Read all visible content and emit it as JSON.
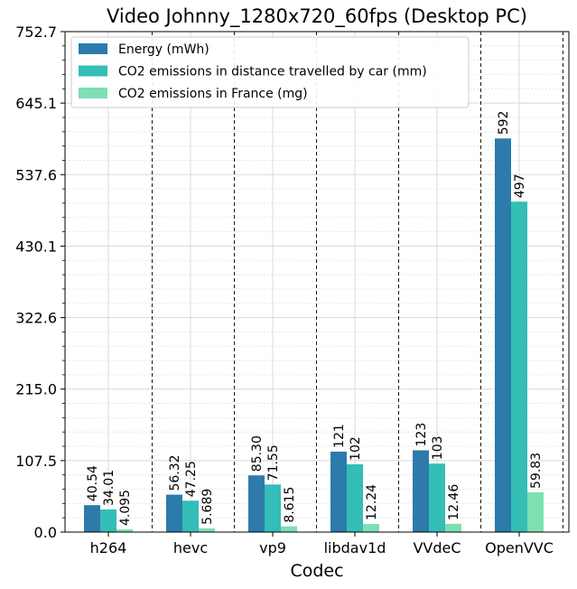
{
  "chart_data": {
    "type": "bar",
    "title": "Video Johnny_1280x720_60fps (Desktop PC)",
    "xlabel": "Codec",
    "ylabel": "",
    "categories": [
      "h264",
      "hevc",
      "vp9",
      "libdav1d",
      "VVdeC",
      "OpenVVC"
    ],
    "ylim": [
      0,
      752.7
    ],
    "yticks": [
      "0.0",
      "107.5",
      "215.0",
      "322.6",
      "430.1",
      "537.6",
      "645.1",
      "752.7"
    ],
    "grid": true,
    "legend_position": "top-left",
    "series": [
      {
        "name": "Energy (mWh)",
        "color": "#2c7bab",
        "values": [
          40.54,
          56.32,
          85.3,
          121,
          123,
          592
        ],
        "labels": [
          "40.54",
          "56.32",
          "85.30",
          "121",
          "123",
          "592"
        ]
      },
      {
        "name": "CO2 emissions in distance travelled by car (mm)",
        "color": "#35bdb7",
        "values": [
          34.01,
          47.25,
          71.55,
          102,
          103,
          497
        ],
        "labels": [
          "34.01",
          "47.25",
          "71.55",
          "102",
          "103",
          "497"
        ]
      },
      {
        "name": "CO2 emissions in France (mg)",
        "color": "#7edfb3",
        "values": [
          4.095,
          5.689,
          8.615,
          12.24,
          12.46,
          59.83
        ],
        "labels": [
          "4.095",
          "5.689",
          "8.615",
          "12.24",
          "12.46",
          "59.83"
        ]
      }
    ]
  }
}
